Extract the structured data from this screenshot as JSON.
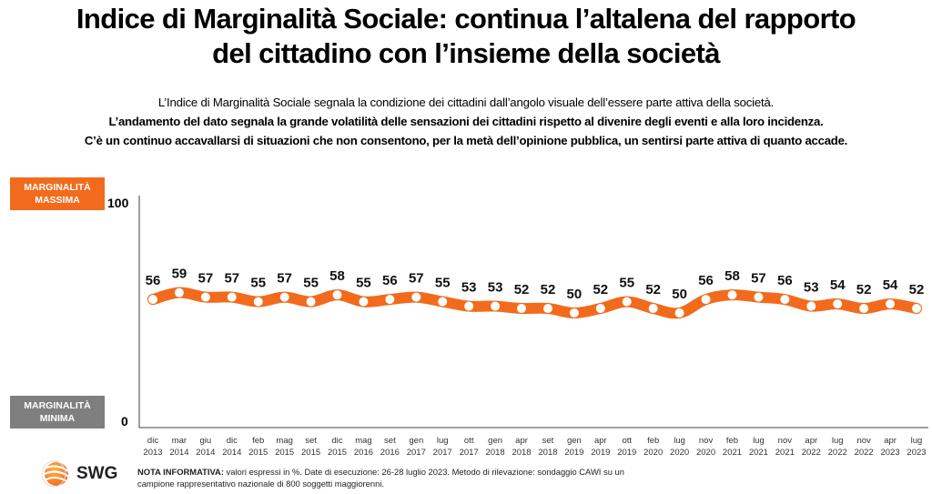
{
  "header": {
    "title_line1": "Indice di Marginalità Sociale: continua l’altalena del rapporto",
    "title_line2": "del cittadino con l’insieme della società",
    "subtitle_line1": "L’Indice di Marginalità Sociale segnala la condizione dei cittadini dall’angolo visuale dell’essere parte attiva della società.",
    "subtitle_line2": "L’andamento del dato segnala la grande volatilità delle sensazioni dei cittadini rispetto al divenire degli eventi e alla loro incidenza.",
    "subtitle_line3": "C’è un continuo accavallarsi di situazioni che non consentono, per la metà dell’opinione pubblica, un sentirsi parte attiva di quanto accade."
  },
  "badges": {
    "max_line1": "MARGINALITÀ",
    "max_line2": "MASSIMA",
    "min_line1": "MARGINALITÀ",
    "min_line2": "MINIMA"
  },
  "colors": {
    "accent": "#F26B1D",
    "min_badge": "#7F7F7F",
    "axis": "#7F7F7F"
  },
  "chart_data": {
    "type": "line",
    "title": "Indice di Marginalità Sociale",
    "xlabel": "",
    "ylabel": "",
    "ylim": [
      0,
      100
    ],
    "yticks": [
      "0",
      "100"
    ],
    "grid": false,
    "legend": "none",
    "categories": [
      [
        "dic",
        "2013"
      ],
      [
        "mar",
        "2014"
      ],
      [
        "giu",
        "2014"
      ],
      [
        "dic",
        "2014"
      ],
      [
        "feb",
        "2015"
      ],
      [
        "mag",
        "2015"
      ],
      [
        "set",
        "2015"
      ],
      [
        "dic",
        "2015"
      ],
      [
        "mag",
        "2016"
      ],
      [
        "set",
        "2016"
      ],
      [
        "gen",
        "2017"
      ],
      [
        "lug",
        "2017"
      ],
      [
        "ott",
        "2017"
      ],
      [
        "gen",
        "2018"
      ],
      [
        "apr",
        "2018"
      ],
      [
        "set",
        "2018"
      ],
      [
        "gen",
        "2019"
      ],
      [
        "apr",
        "2019"
      ],
      [
        "ott",
        "2019"
      ],
      [
        "feb",
        "2020"
      ],
      [
        "lug",
        "2020"
      ],
      [
        "nov",
        "2020"
      ],
      [
        "feb",
        "2021"
      ],
      [
        "lug",
        "2021"
      ],
      [
        "nov",
        "2021"
      ],
      [
        "apr",
        "2022"
      ],
      [
        "lug",
        "2022"
      ],
      [
        "nov",
        "2022"
      ],
      [
        "apr",
        "2023"
      ],
      [
        "lug",
        "2023"
      ]
    ],
    "series": [
      {
        "name": "Indice di Marginalità Sociale",
        "values": [
          56,
          59,
          57,
          57,
          55,
          57,
          55,
          58,
          55,
          56,
          57,
          55,
          53,
          53,
          52,
          52,
          50,
          52,
          55,
          52,
          50,
          56,
          58,
          57,
          56,
          53,
          54,
          52,
          54,
          52
        ]
      }
    ]
  },
  "footer": {
    "logo_text": "SWG",
    "note_label": "NOTA INFORMATIVA:",
    "note_text": " valori espressi in %. Date di esecuzione: 26-28 luglio 2023. Metodo di rilevazione: sondaggio CAWI su un campione rappresentativo nazionale di 800 soggetti maggiorenni."
  }
}
